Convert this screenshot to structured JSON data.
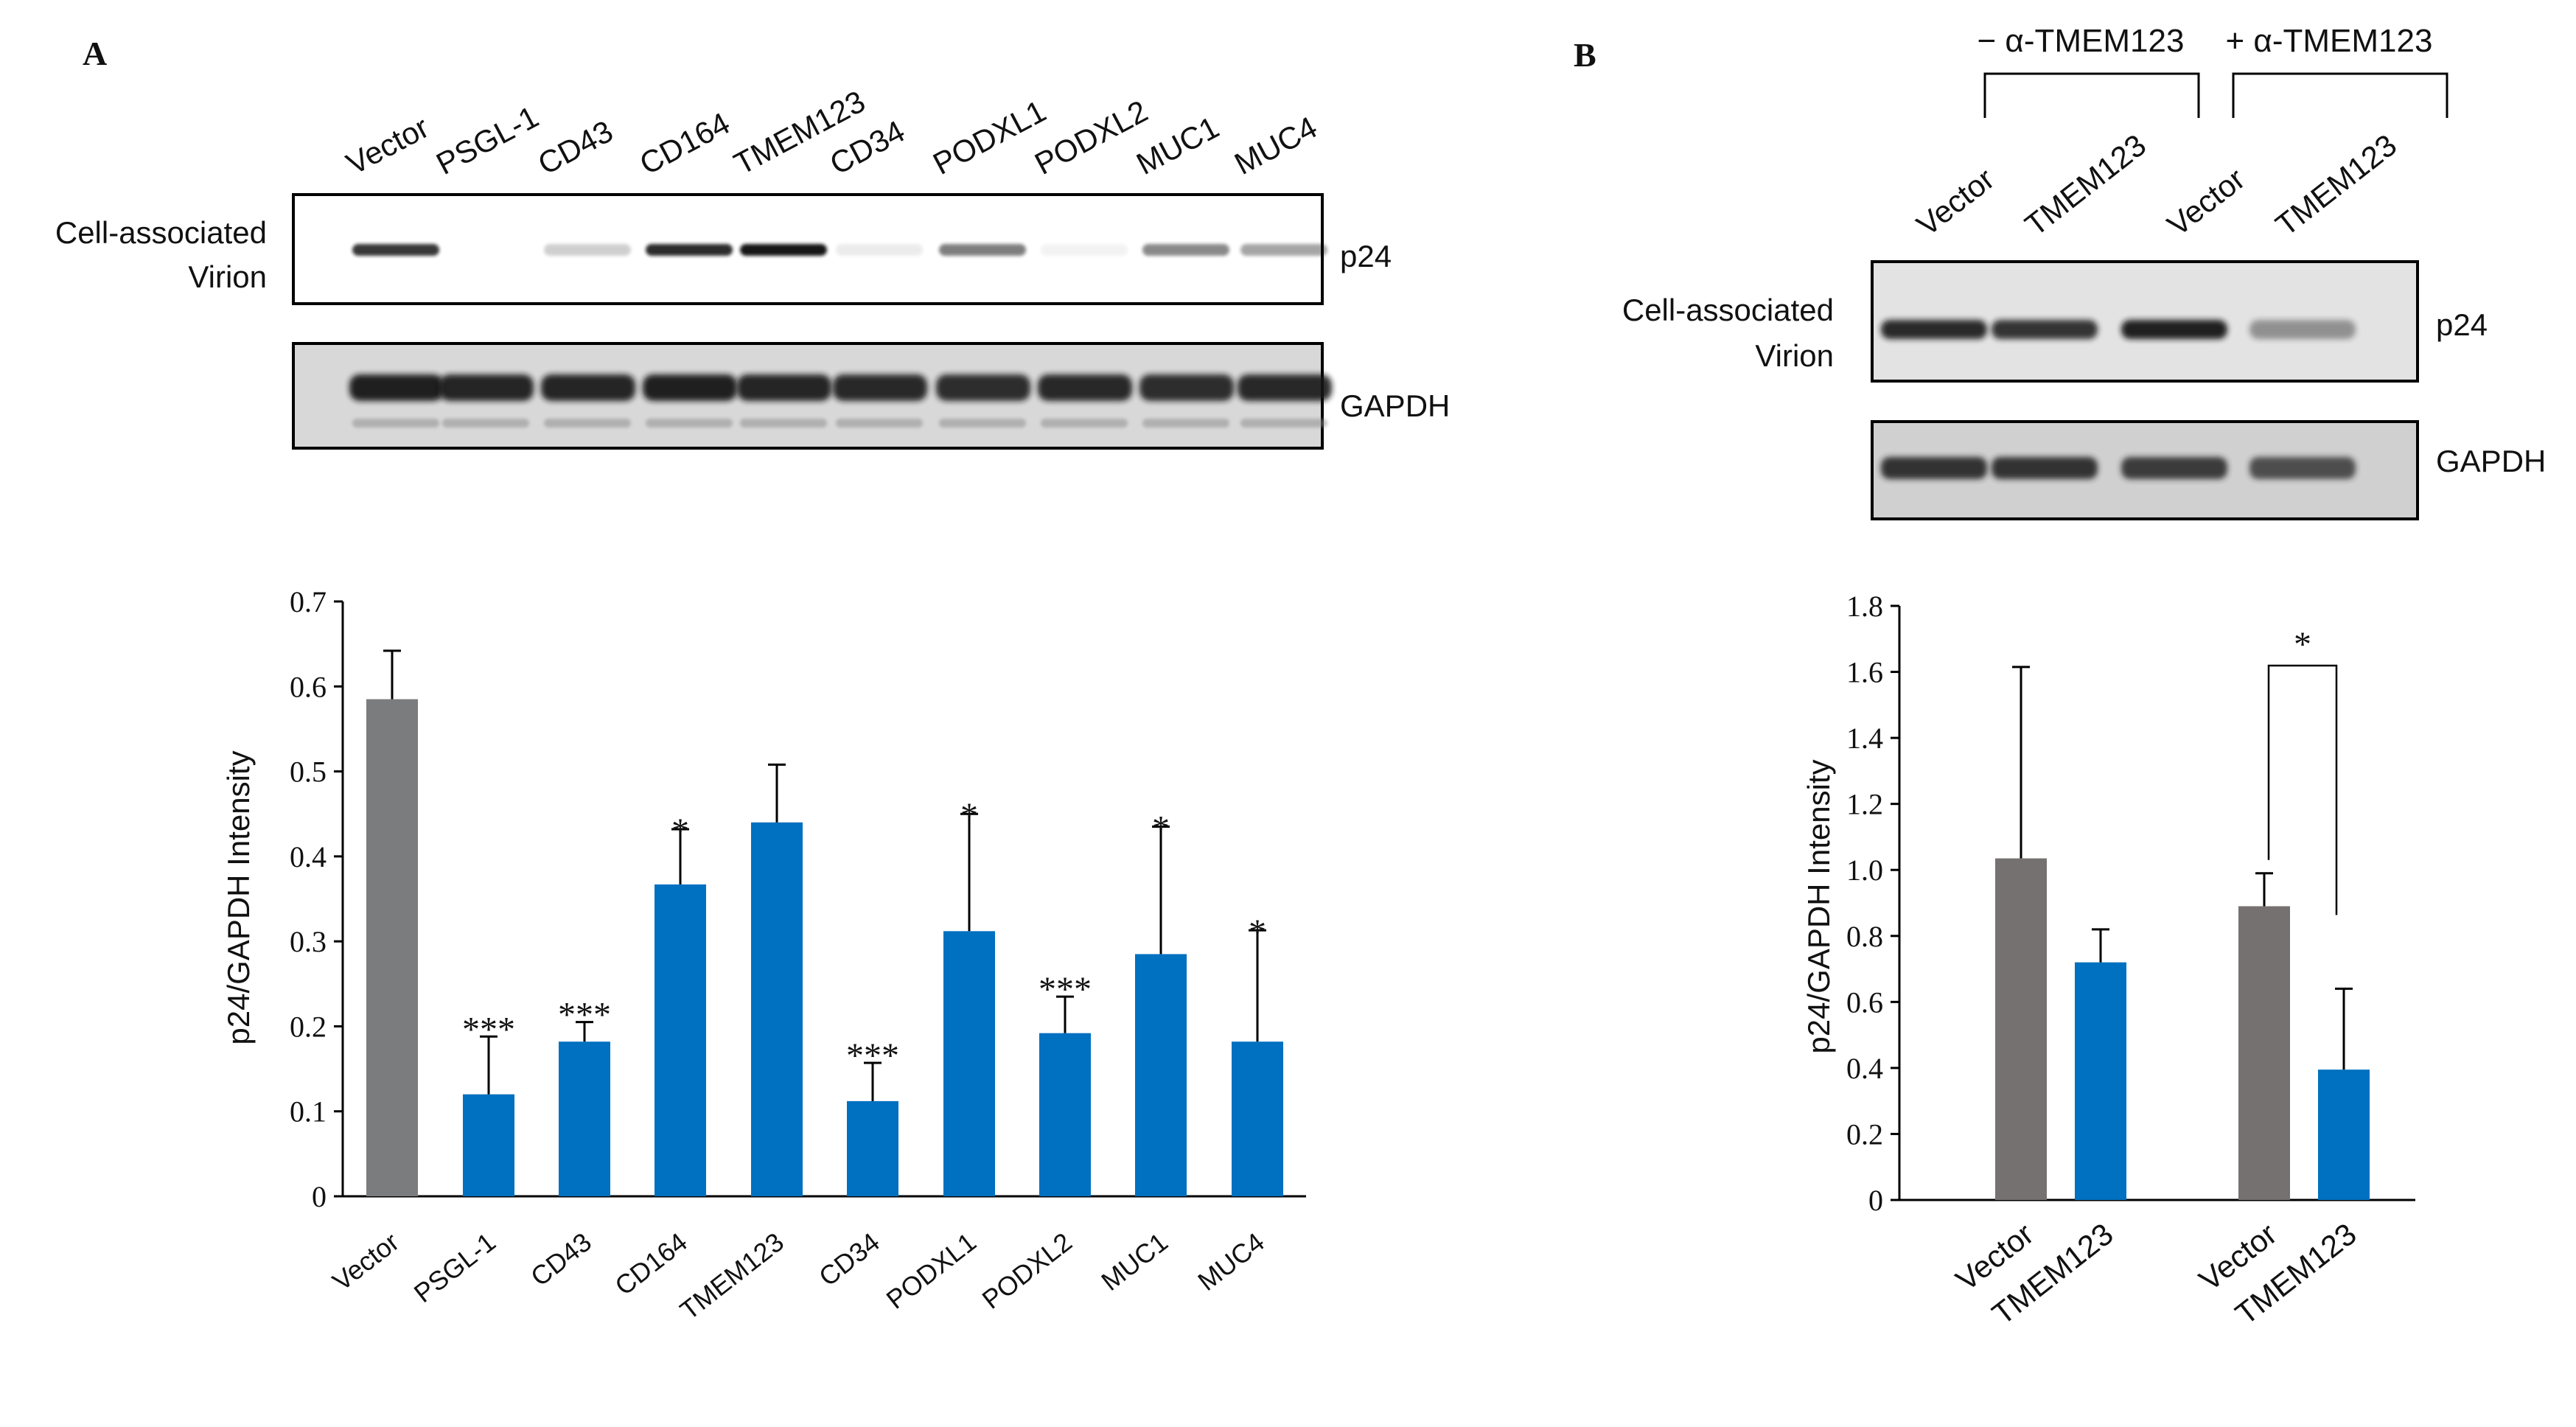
{
  "panelA": {
    "letter": "A",
    "lanes": [
      "Vector",
      "PSGL-1",
      "CD43",
      "CD164",
      "TMEM123",
      "CD34",
      "PODXL1",
      "PODXL2",
      "MUC1",
      "MUC4"
    ],
    "blot_row_label": [
      "Cell-associated",
      "Virion"
    ],
    "p24_label": "p24",
    "gapdh_label": "GAPDH",
    "p24_intensity": [
      0.85,
      0.0,
      0.2,
      0.9,
      1.0,
      0.08,
      0.55,
      0.05,
      0.5,
      0.38
    ],
    "gapdh_intensity": [
      0.95,
      0.92,
      0.92,
      0.95,
      0.92,
      0.9,
      0.88,
      0.9,
      0.88,
      0.9
    ],
    "chart_data": {
      "type": "bar",
      "title": "",
      "xlabel": "",
      "ylabel": "p24/GAPDH Intensity",
      "ylim": [
        0,
        0.7
      ],
      "yticks": [
        "0",
        "0.1",
        "0.2",
        "0.3",
        "0.4",
        "0.5",
        "0.6",
        "0.7"
      ],
      "ytick_values": [
        0,
        0.1,
        0.2,
        0.3,
        0.4,
        0.5,
        0.6,
        0.7
      ],
      "categories": [
        "Vector",
        "PSGL-1",
        "CD43",
        "CD164",
        "TMEM123",
        "CD34",
        "PODXL1",
        "PODXL2",
        "MUC1",
        "MUC4"
      ],
      "values": [
        0.585,
        0.12,
        0.182,
        0.367,
        0.44,
        0.112,
        0.312,
        0.192,
        0.285,
        0.182
      ],
      "errors": [
        0.057,
        0.068,
        0.023,
        0.065,
        0.068,
        0.045,
        0.138,
        0.043,
        0.15,
        0.131
      ],
      "significance": [
        "",
        "***",
        "***",
        "*",
        "",
        "***",
        "*",
        "***",
        "*",
        "*"
      ],
      "colors": [
        "#7b7c7e",
        "#0070c0",
        "#0070c0",
        "#0070c0",
        "#0070c0",
        "#0070c0",
        "#0070c0",
        "#0070c0",
        "#0070c0",
        "#0070c0"
      ],
      "grid": false
    }
  },
  "panelB": {
    "letter": "B",
    "group_labels": [
      "− α-TMEM123",
      "+ α-TMEM123"
    ],
    "lanes": [
      "Vector",
      "TMEM123",
      "Vector",
      "TMEM123"
    ],
    "blot_row_label": [
      "Cell-associated",
      "Virion"
    ],
    "p24_label": "p24",
    "gapdh_label": "GAPDH",
    "p24_intensity": [
      0.9,
      0.85,
      0.95,
      0.4
    ],
    "gapdh_intensity": [
      0.9,
      0.9,
      0.85,
      0.75
    ],
    "chart_data": {
      "type": "bar",
      "title": "",
      "xlabel": "",
      "ylabel": "p24/GAPDH Intensity",
      "ylim": [
        0,
        1.8
      ],
      "yticks": [
        "0",
        "0.2",
        "0.4",
        "0.6",
        "0.8",
        "1.0",
        "1.2",
        "1.4",
        "1.6",
        "1.8"
      ],
      "ytick_values": [
        0,
        0.2,
        0.4,
        0.6,
        0.8,
        1.0,
        1.2,
        1.4,
        1.6,
        1.8
      ],
      "categories": [
        "Vector",
        "TMEM123",
        "Vector",
        "TMEM123"
      ],
      "groups": [
        "− α-TMEM123",
        "+ α-TMEM123"
      ],
      "values": [
        1.035,
        0.72,
        0.89,
        0.395
      ],
      "errors": [
        0.58,
        0.1,
        0.1,
        0.245
      ],
      "colors": [
        "#767171",
        "#0070c0",
        "#767171",
        "#0070c0"
      ],
      "significance_bracket": {
        "from": 2,
        "to": 3,
        "label": "*"
      },
      "grid": false
    }
  },
  "colors": {
    "blue": "#0070c0",
    "gray": "#7b7c7e",
    "bracket_gray": "#767171",
    "blot_band": "#141414"
  }
}
